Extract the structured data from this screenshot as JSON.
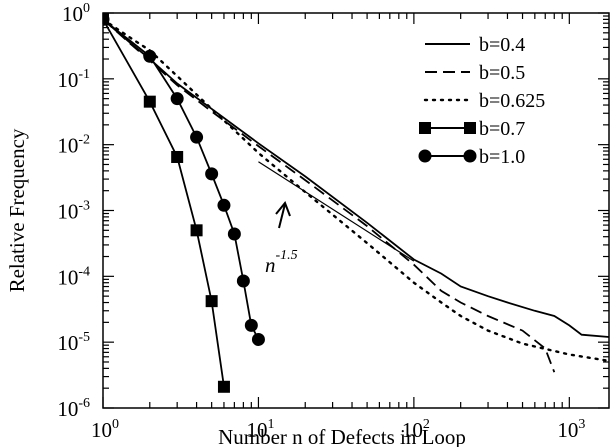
{
  "chart_data": {
    "type": "line",
    "xlabel": "Number n of Defects in Loop",
    "ylabel": "Relative Frequency",
    "xscale": "log",
    "yscale": "log",
    "xlim": [
      1,
      1800
    ],
    "ylim": [
      1e-06,
      1
    ],
    "x_ticks": [
      {
        "base": "10",
        "exp": "0"
      },
      {
        "base": "10",
        "exp": "1"
      },
      {
        "base": "10",
        "exp": "2"
      },
      {
        "base": "10",
        "exp": "3"
      }
    ],
    "y_ticks": [
      {
        "base": "10",
        "exp": "0"
      },
      {
        "base": "10",
        "exp": "-1"
      },
      {
        "base": "10",
        "exp": "-2"
      },
      {
        "base": "10",
        "exp": "-3"
      },
      {
        "base": "10",
        "exp": "-4"
      },
      {
        "base": "10",
        "exp": "-5"
      },
      {
        "base": "10",
        "exp": "-6"
      }
    ],
    "legend_position": "top-right",
    "series": [
      {
        "name": "b=0.4",
        "style": "solid",
        "x": [
          1,
          1.5,
          2,
          3,
          5,
          10,
          20,
          50,
          100,
          150,
          200,
          300,
          400,
          600,
          800,
          1000,
          1200,
          1800
        ],
        "y": [
          0.8,
          0.35,
          0.2,
          0.085,
          0.035,
          0.0105,
          0.0033,
          0.00065,
          0.00018,
          0.00011,
          7e-05,
          5e-05,
          4e-05,
          3e-05,
          2.5e-05,
          1.8e-05,
          1.3e-05,
          1.2e-05
        ]
      },
      {
        "name": "b=0.5",
        "style": "dashed",
        "x": [
          1,
          1.5,
          2,
          3,
          5,
          10,
          20,
          50,
          100,
          150,
          200,
          300,
          500,
          700,
          800
        ],
        "y": [
          0.8,
          0.34,
          0.19,
          0.08,
          0.032,
          0.0095,
          0.0029,
          0.00058,
          0.00015,
          6e-05,
          4e-05,
          2.5e-05,
          1.5e-05,
          8e-06,
          3.5e-06
        ]
      },
      {
        "name": "b=0.625",
        "style": "dotted",
        "x": [
          1,
          1.5,
          2,
          3,
          5,
          10,
          20,
          50,
          100,
          150,
          200,
          300,
          500,
          1000,
          1800
        ],
        "y": [
          0.8,
          0.42,
          0.27,
          0.11,
          0.035,
          0.0075,
          0.0019,
          0.00032,
          8e-05,
          4e-05,
          2.5e-05,
          1.5e-05,
          9.5e-06,
          6.5e-06,
          5.2e-06
        ]
      },
      {
        "name": "b=0.7",
        "style": "solid-square",
        "x": [
          1,
          2,
          3,
          4,
          5,
          6
        ],
        "y": [
          0.8,
          0.045,
          0.0065,
          0.0005,
          4.2e-05,
          2.1e-06
        ]
      },
      {
        "name": "b=1.0",
        "style": "solid-circle",
        "x": [
          1,
          2,
          3,
          4,
          5,
          6,
          7,
          8,
          9,
          10
        ],
        "y": [
          0.8,
          0.22,
          0.05,
          0.013,
          0.0036,
          0.0012,
          0.00044,
          8.5e-05,
          1.8e-05,
          1.1e-05
        ]
      }
    ],
    "reference_line": {
      "x": [
        10,
        100
      ],
      "y": [
        0.0055,
        0.00017
      ]
    },
    "annotation": {
      "base": "n",
      "exp": "-1.5"
    }
  }
}
